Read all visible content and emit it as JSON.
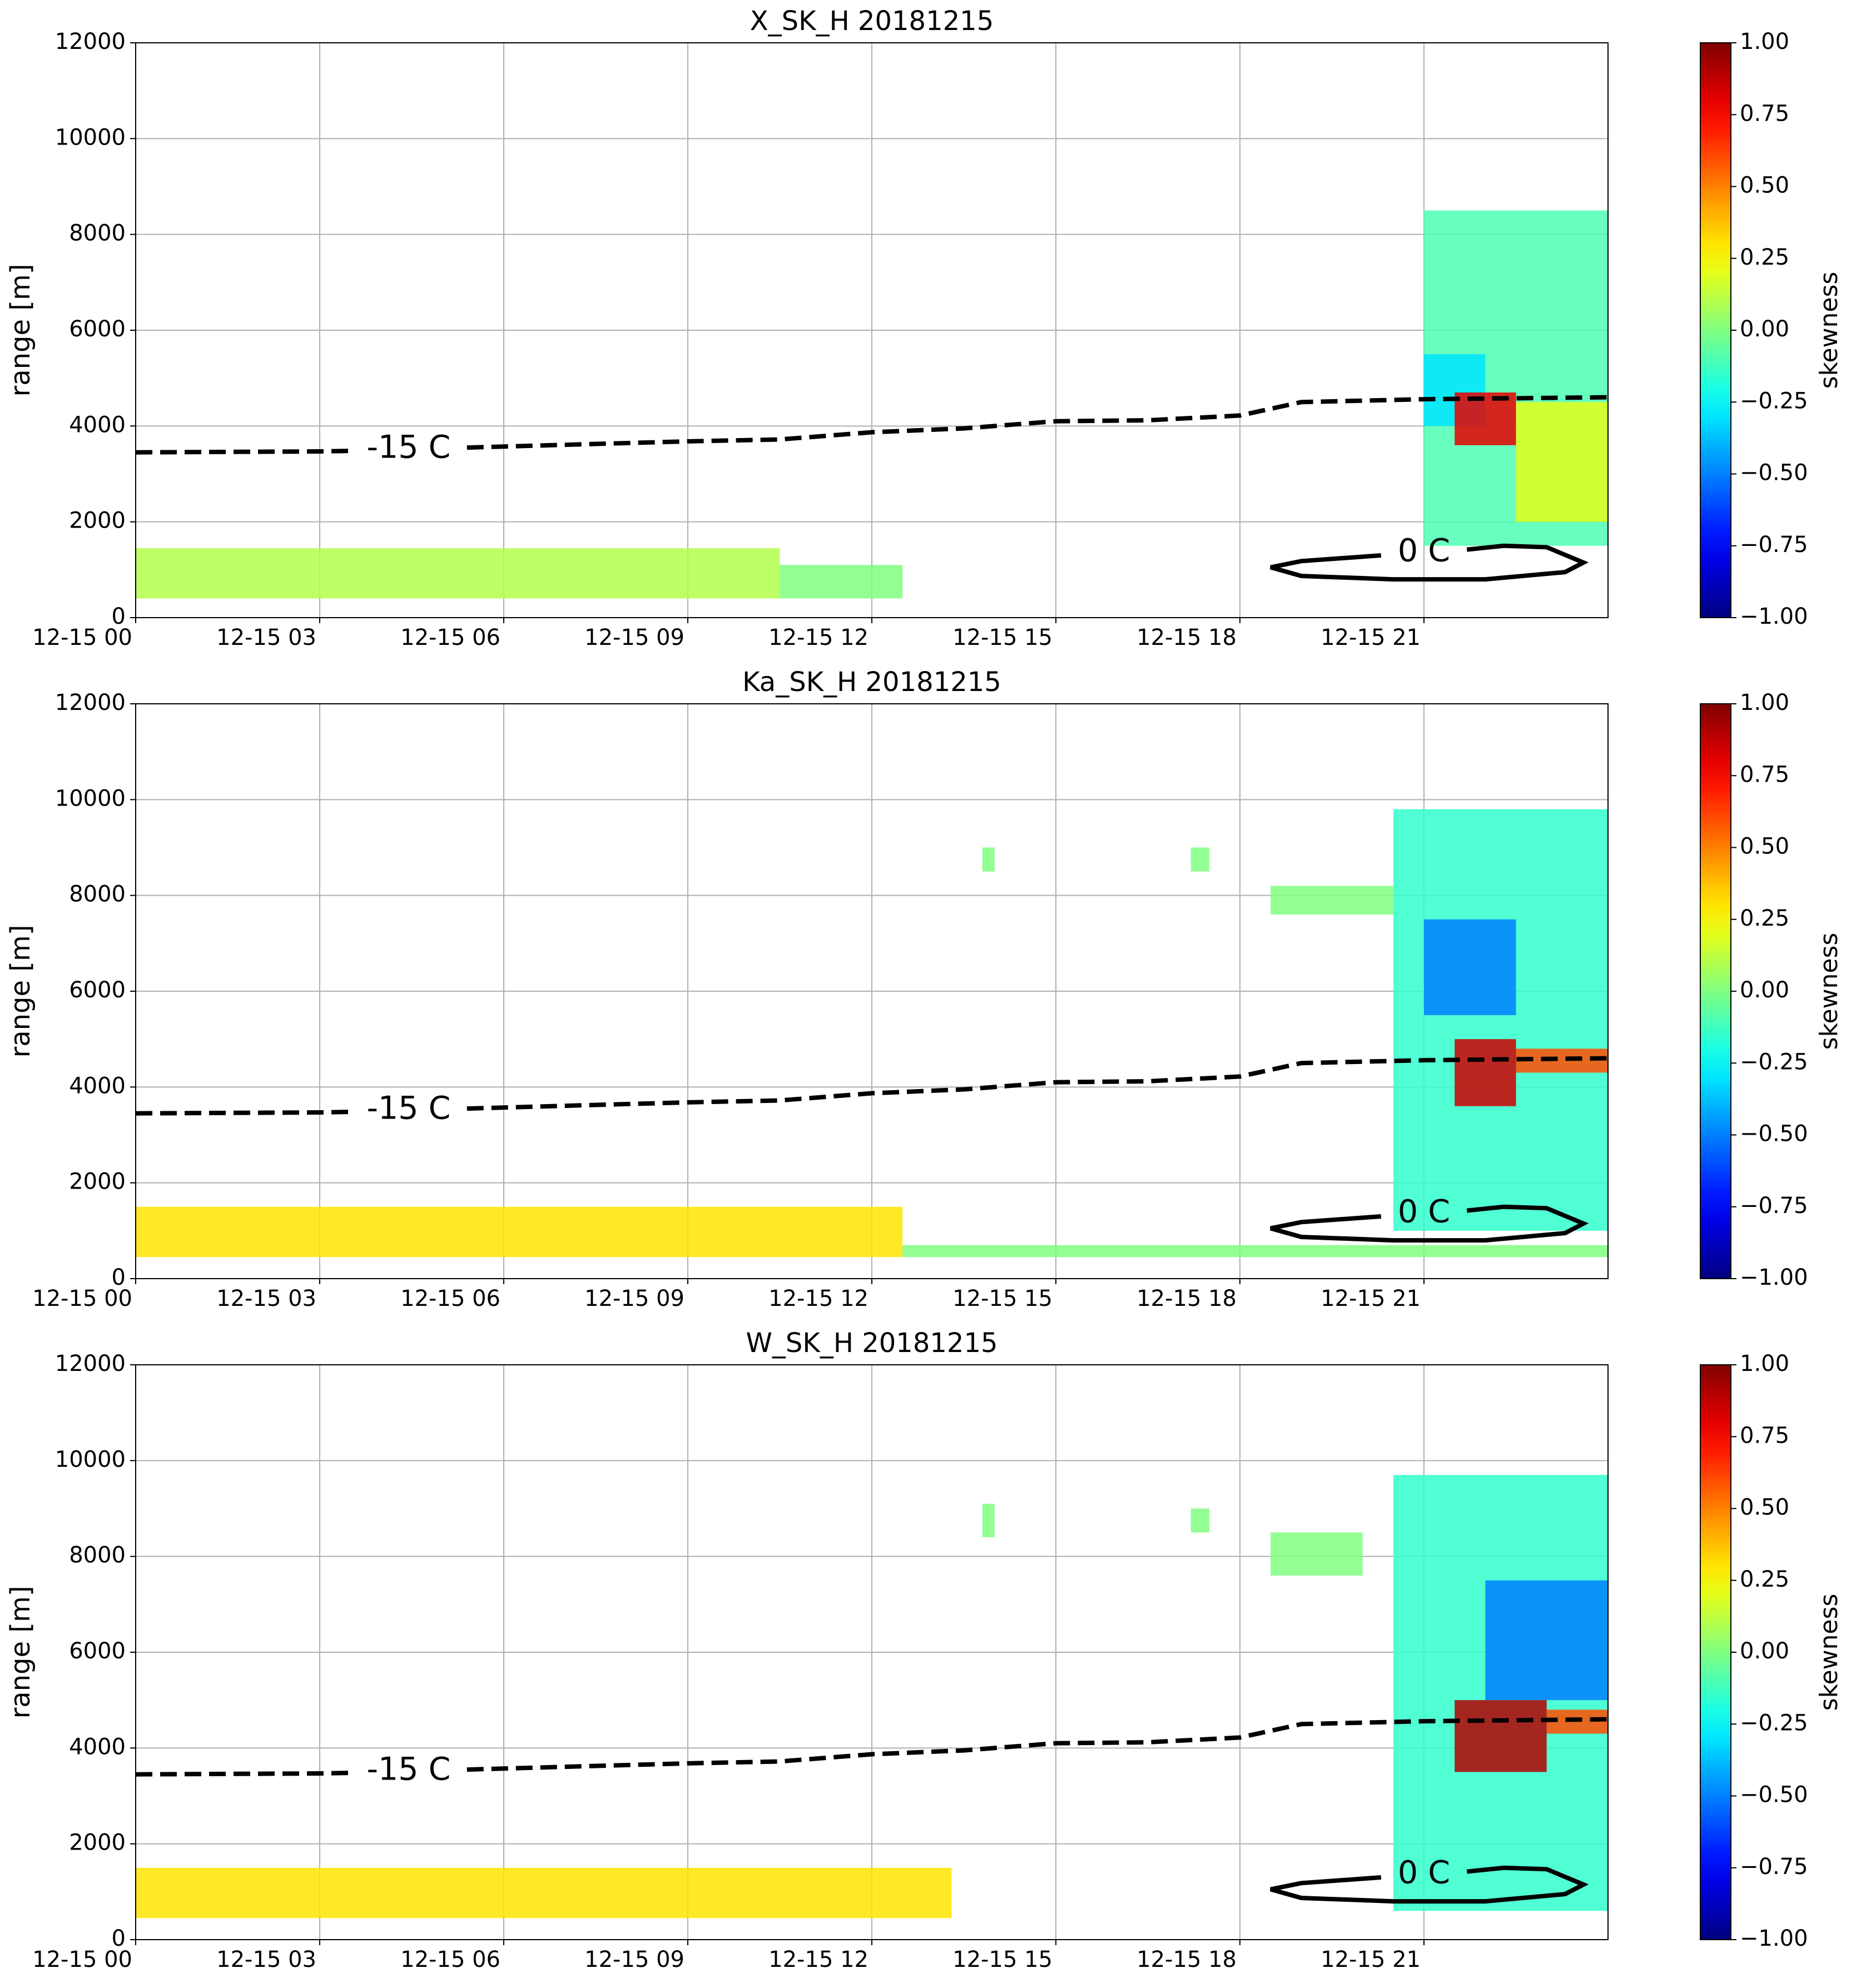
{
  "chart_data": [
    {
      "type": "heatmap",
      "title": "X_SK_H 20181215",
      "ylabel": "range [m]",
      "colorbar_label": "skewness",
      "xlim": [
        0,
        24
      ],
      "ylim": [
        0,
        12000
      ],
      "xticks": [
        {
          "value": 0,
          "label": "12-15 00"
        },
        {
          "value": 3,
          "label": "12-15 03"
        },
        {
          "value": 6,
          "label": "12-15 06"
        },
        {
          "value": 9,
          "label": "12-15 09"
        },
        {
          "value": 12,
          "label": "12-15 12"
        },
        {
          "value": 15,
          "label": "12-15 15"
        },
        {
          "value": 18,
          "label": "12-15 18"
        },
        {
          "value": 21,
          "label": "12-15 21"
        }
      ],
      "yticks": [
        0,
        2000,
        4000,
        6000,
        8000,
        10000,
        12000
      ],
      "grid": true,
      "clim": [
        -1,
        1
      ],
      "cticks": [
        {
          "value": 1,
          "label": "1.00"
        },
        {
          "value": 0.75,
          "label": "0.75"
        },
        {
          "value": 0.5,
          "label": "0.50"
        },
        {
          "value": 0.25,
          "label": "0.25"
        },
        {
          "value": 0,
          "label": "0.00"
        },
        {
          "value": -0.25,
          "label": "−0.25"
        },
        {
          "value": -0.5,
          "label": "−0.50"
        },
        {
          "value": -0.75,
          "label": "−0.75"
        },
        {
          "value": -1,
          "label": "−1.00"
        }
      ],
      "cells": [
        {
          "x": [
            0,
            10.5
          ],
          "y": [
            400,
            1450
          ],
          "value": 0.1
        },
        {
          "x": [
            10.5,
            12.5
          ],
          "y": [
            400,
            1100
          ],
          "value": 0
        },
        {
          "x": [
            21,
            24
          ],
          "y": [
            1500,
            8500
          ],
          "value": -0.1
        },
        {
          "x": [
            21,
            22
          ],
          "y": [
            4000,
            5500
          ],
          "value": -0.3
        },
        {
          "x": [
            22.5,
            24
          ],
          "y": [
            2000,
            4500
          ],
          "value": 0.2
        },
        {
          "x": [
            21.5,
            22.5
          ],
          "y": [
            3600,
            4700
          ],
          "value": 0.8
        }
      ],
      "lines": [
        {
          "label": "-15 C",
          "style": "dashed",
          "color": "#000000",
          "x": [
            0,
            3,
            3.5,
            null,
            5.4,
            9,
            10.5,
            12,
            13.5,
            14.5,
            15,
            16.5,
            18,
            19,
            21,
            24
          ],
          "values": [
            3450,
            3470,
            3480,
            null,
            3550,
            3680,
            3720,
            3870,
            3950,
            4050,
            4100,
            4120,
            4220,
            4500,
            4560,
            4600
          ]
        },
        {
          "label": "0 C",
          "style": "solid",
          "color": "#000000",
          "x": [
            21.7,
            22.3,
            23.0,
            23.6,
            23.3,
            22.0,
            20.5,
            19.0,
            18.5,
            19.0,
            20.3
          ],
          "values": [
            1420,
            1500,
            1470,
            1150,
            950,
            800,
            800,
            870,
            1050,
            1180,
            1300
          ]
        }
      ]
    },
    {
      "type": "heatmap",
      "title": "Ka_SK_H 20181215",
      "ylabel": "range [m]",
      "colorbar_label": "skewness",
      "xlim": [
        0,
        24
      ],
      "ylim": [
        0,
        12000
      ],
      "xticks": [
        {
          "value": 0,
          "label": "12-15 00"
        },
        {
          "value": 3,
          "label": "12-15 03"
        },
        {
          "value": 6,
          "label": "12-15 06"
        },
        {
          "value": 9,
          "label": "12-15 09"
        },
        {
          "value": 12,
          "label": "12-15 12"
        },
        {
          "value": 15,
          "label": "12-15 15"
        },
        {
          "value": 18,
          "label": "12-15 18"
        },
        {
          "value": 21,
          "label": "12-15 21"
        }
      ],
      "yticks": [
        0,
        2000,
        4000,
        6000,
        8000,
        10000,
        12000
      ],
      "grid": true,
      "clim": [
        -1,
        1
      ],
      "cticks": [
        {
          "value": 1,
          "label": "1.00"
        },
        {
          "value": 0.75,
          "label": "0.75"
        },
        {
          "value": 0.5,
          "label": "0.50"
        },
        {
          "value": 0.25,
          "label": "0.25"
        },
        {
          "value": 0,
          "label": "0.00"
        },
        {
          "value": -0.25,
          "label": "−0.25"
        },
        {
          "value": -0.5,
          "label": "−0.50"
        },
        {
          "value": -0.75,
          "label": "−0.75"
        },
        {
          "value": -1,
          "label": "−1.00"
        }
      ],
      "cells": [
        {
          "x": [
            0,
            12.5
          ],
          "y": [
            450,
            1500
          ],
          "value": 0.3
        },
        {
          "x": [
            12.5,
            24
          ],
          "y": [
            450,
            700
          ],
          "value": 0
        },
        {
          "x": [
            13.8,
            14
          ],
          "y": [
            8500,
            9000
          ],
          "value": 0
        },
        {
          "x": [
            17.2,
            17.5
          ],
          "y": [
            8500,
            9000
          ],
          "value": 0
        },
        {
          "x": [
            18.5,
            20.5
          ],
          "y": [
            7600,
            8200
          ],
          "value": 0
        },
        {
          "x": [
            20.5,
            24
          ],
          "y": [
            1000,
            9800
          ],
          "value": -0.15
        },
        {
          "x": [
            21,
            22.5
          ],
          "y": [
            5500,
            7500
          ],
          "value": -0.5
        },
        {
          "x": [
            22.5,
            24
          ],
          "y": [
            4300,
            4800
          ],
          "value": 0.6
        },
        {
          "x": [
            21.5,
            22.5
          ],
          "y": [
            3600,
            5000
          ],
          "value": 0.85
        }
      ],
      "lines": [
        {
          "label": "-15 C",
          "style": "dashed",
          "color": "#000000",
          "x": [
            0,
            3,
            3.5,
            null,
            5.4,
            9,
            10.5,
            12,
            13.5,
            14.5,
            15,
            16.5,
            18,
            19,
            21,
            24
          ],
          "values": [
            3450,
            3470,
            3480,
            null,
            3550,
            3680,
            3720,
            3870,
            3950,
            4050,
            4100,
            4120,
            4220,
            4500,
            4560,
            4600
          ]
        },
        {
          "label": "0 C",
          "style": "solid",
          "color": "#000000",
          "x": [
            21.7,
            22.3,
            23.0,
            23.6,
            23.3,
            22.0,
            20.5,
            19.0,
            18.5,
            19.0,
            20.3
          ],
          "values": [
            1420,
            1500,
            1470,
            1150,
            950,
            800,
            800,
            870,
            1050,
            1180,
            1300
          ]
        }
      ]
    },
    {
      "type": "heatmap",
      "title": "W_SK_H 20181215",
      "ylabel": "range [m]",
      "colorbar_label": "skewness",
      "xlim": [
        0,
        24
      ],
      "ylim": [
        0,
        12000
      ],
      "xticks": [
        {
          "value": 0,
          "label": "12-15 00"
        },
        {
          "value": 3,
          "label": "12-15 03"
        },
        {
          "value": 6,
          "label": "12-15 06"
        },
        {
          "value": 9,
          "label": "12-15 09"
        },
        {
          "value": 12,
          "label": "12-15 12"
        },
        {
          "value": 15,
          "label": "12-15 15"
        },
        {
          "value": 18,
          "label": "12-15 18"
        },
        {
          "value": 21,
          "label": "12-15 21"
        }
      ],
      "yticks": [
        0,
        2000,
        4000,
        6000,
        8000,
        10000,
        12000
      ],
      "grid": true,
      "clim": [
        -1,
        1
      ],
      "cticks": [
        {
          "value": 1,
          "label": "1.00"
        },
        {
          "value": 0.75,
          "label": "0.75"
        },
        {
          "value": 0.5,
          "label": "0.50"
        },
        {
          "value": 0.25,
          "label": "0.25"
        },
        {
          "value": 0,
          "label": "0.00"
        },
        {
          "value": -0.25,
          "label": "−0.25"
        },
        {
          "value": -0.5,
          "label": "−0.50"
        },
        {
          "value": -0.75,
          "label": "−0.75"
        },
        {
          "value": -1,
          "label": "−1.00"
        }
      ],
      "cells": [
        {
          "x": [
            0,
            13.3
          ],
          "y": [
            450,
            1500
          ],
          "value": 0.3
        },
        {
          "x": [
            13.8,
            14
          ],
          "y": [
            8400,
            9100
          ],
          "value": 0
        },
        {
          "x": [
            17.2,
            17.5
          ],
          "y": [
            8500,
            9000
          ],
          "value": 0
        },
        {
          "x": [
            18.5,
            20
          ],
          "y": [
            7600,
            8500
          ],
          "value": 0
        },
        {
          "x": [
            20.5,
            24
          ],
          "y": [
            600,
            9700
          ],
          "value": -0.15
        },
        {
          "x": [
            22,
            24
          ],
          "y": [
            5000,
            7500
          ],
          "value": -0.5
        },
        {
          "x": [
            23,
            24
          ],
          "y": [
            4300,
            4800
          ],
          "value": 0.6
        },
        {
          "x": [
            21.5,
            23
          ],
          "y": [
            3500,
            5000
          ],
          "value": 0.9
        }
      ],
      "lines": [
        {
          "label": "-15 C",
          "style": "dashed",
          "color": "#000000",
          "x": [
            0,
            3,
            3.5,
            null,
            5.4,
            9,
            10.5,
            12,
            13.5,
            14.5,
            15,
            16.5,
            18,
            19,
            21,
            24
          ],
          "values": [
            3450,
            3470,
            3480,
            null,
            3550,
            3680,
            3720,
            3870,
            3950,
            4050,
            4100,
            4120,
            4220,
            4500,
            4560,
            4600
          ]
        },
        {
          "label": "0 C",
          "style": "solid",
          "color": "#000000",
          "x": [
            21.7,
            22.3,
            23.0,
            23.6,
            23.3,
            22.0,
            20.5,
            19.0,
            18.5,
            19.0,
            20.3
          ],
          "values": [
            1420,
            1500,
            1470,
            1150,
            950,
            800,
            800,
            870,
            1050,
            1180,
            1300
          ]
        }
      ]
    }
  ]
}
